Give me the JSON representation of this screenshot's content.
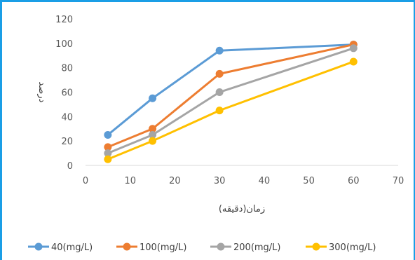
{
  "chart_data": {
    "type": "line",
    "title": "",
    "xlabel": "زمان(دقیقه)",
    "ylabel": "درصد",
    "xlim": [
      0,
      70
    ],
    "ylim": [
      0,
      120
    ],
    "x_ticks": [
      0,
      10,
      20,
      30,
      40,
      50,
      60,
      70
    ],
    "y_ticks": [
      0,
      20,
      40,
      60,
      80,
      100,
      120
    ],
    "grid": false,
    "legend_position": "bottom",
    "x": [
      5,
      15,
      30,
      60
    ],
    "series": [
      {
        "name": "40(mg/L)",
        "color": "#5b9bd5",
        "values": [
          25,
          55,
          94,
          99
        ]
      },
      {
        "name": "100(mg/L)",
        "color": "#ed7d31",
        "values": [
          15,
          30,
          75,
          99
        ]
      },
      {
        "name": "200(mg/L)",
        "color": "#a5a5a5",
        "values": [
          10,
          25,
          60,
          96
        ]
      },
      {
        "name": "300(mg/L)",
        "color": "#ffc000",
        "values": [
          5,
          20,
          45,
          85
        ]
      }
    ]
  }
}
